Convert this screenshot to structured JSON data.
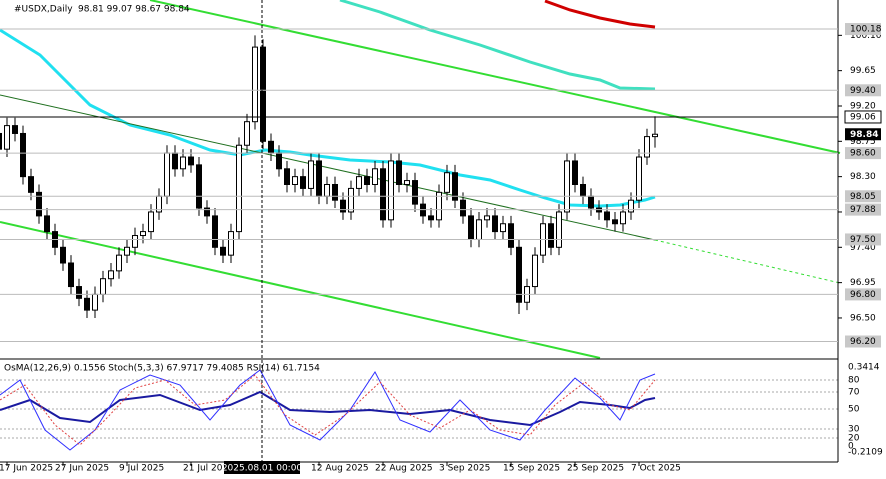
{
  "chart_data": {
    "type": "candlestick",
    "title": "#USDX,Daily",
    "title_values": "98.81 99.07 98.67 98.84",
    "categories": [
      null,
      null,
      "17 Jun 2025",
      null,
      null,
      null,
      null,
      null,
      null,
      "27 Jun 2025",
      null,
      null,
      null,
      null,
      null,
      null,
      null,
      "9 Jul 2025",
      null,
      null,
      null,
      null,
      null,
      null,
      null,
      "21 Jul 2025",
      null,
      null,
      null,
      null,
      null,
      null,
      null,
      null,
      null,
      null,
      null,
      null,
      null,
      null,
      null,
      "12 Aug 2025",
      null,
      null,
      null,
      null,
      null,
      null,
      null,
      "22 Aug 2025",
      null,
      null,
      null,
      null,
      null,
      null,
      null,
      "3 Sep 2025",
      null,
      null,
      null,
      null,
      null,
      null,
      null,
      "15 Sep 2025",
      null,
      null,
      null,
      null,
      null,
      null,
      null,
      "25 Sep 2025",
      null,
      null,
      null,
      null,
      null,
      null,
      null,
      "7 Oct 2025",
      null,
      null
    ],
    "open": [
      98.7,
      98.85,
      98.65,
      98.95,
      98.85,
      98.3,
      98.1,
      97.8,
      97.6,
      97.4,
      97.2,
      96.9,
      96.75,
      96.6,
      96.8,
      97.0,
      97.1,
      97.3,
      97.4,
      97.55,
      97.6,
      97.85,
      98.05,
      98.6,
      98.4,
      98.55,
      98.45,
      97.9,
      97.8,
      97.4,
      97.3,
      97.6,
      98.7,
      99.0,
      99.95,
      98.75,
      98.6,
      98.4,
      98.2,
      98.3,
      98.15,
      98.5,
      98.05,
      98.2,
      98.0,
      97.85,
      98.15,
      98.3,
      98.2,
      98.4,
      97.75,
      98.5,
      98.2,
      98.25,
      97.95,
      97.8,
      97.75,
      98.1,
      98.35,
      98.0,
      97.8,
      97.5,
      97.75,
      97.8,
      97.6,
      97.7,
      97.4,
      96.7,
      96.9,
      97.3,
      97.7,
      97.4,
      97.85,
      98.5,
      98.2,
      98.05,
      97.9,
      97.85,
      97.75,
      97.7,
      97.85,
      98.0,
      98.55,
      98.81
    ],
    "high": [
      98.95,
      98.95,
      99.05,
      99.05,
      98.95,
      98.4,
      98.2,
      97.9,
      97.7,
      97.5,
      97.3,
      97.0,
      96.85,
      96.9,
      97.1,
      97.2,
      97.4,
      97.5,
      97.65,
      97.7,
      97.95,
      98.15,
      98.7,
      98.7,
      98.65,
      98.65,
      98.55,
      98.0,
      97.9,
      97.5,
      97.7,
      98.8,
      99.1,
      100.1,
      100.05,
      98.85,
      98.7,
      98.5,
      98.4,
      98.4,
      98.6,
      98.6,
      98.3,
      98.3,
      98.1,
      98.25,
      98.4,
      98.4,
      98.5,
      98.5,
      98.6,
      98.6,
      98.35,
      98.35,
      98.05,
      97.9,
      98.2,
      98.45,
      98.45,
      98.1,
      97.9,
      97.85,
      97.9,
      97.9,
      97.8,
      97.8,
      97.5,
      97.0,
      97.4,
      97.8,
      97.8,
      97.95,
      98.6,
      98.6,
      98.3,
      98.15,
      98.0,
      97.95,
      97.85,
      97.95,
      98.1,
      98.65,
      98.91,
      99.07
    ],
    "low": [
      98.6,
      98.55,
      98.55,
      98.75,
      98.2,
      98.0,
      97.7,
      97.5,
      97.3,
      97.1,
      96.8,
      96.65,
      96.5,
      96.5,
      96.7,
      96.9,
      97.0,
      97.2,
      97.3,
      97.45,
      97.5,
      97.75,
      97.95,
      98.3,
      98.3,
      98.35,
      97.8,
      97.7,
      97.3,
      97.2,
      97.2,
      97.5,
      98.6,
      98.9,
      98.65,
      98.5,
      98.3,
      98.1,
      98.1,
      98.05,
      98.05,
      97.95,
      97.95,
      97.9,
      97.75,
      97.75,
      98.05,
      98.1,
      98.1,
      97.65,
      97.65,
      98.1,
      98.1,
      97.85,
      97.7,
      97.65,
      97.65,
      98.0,
      97.9,
      97.7,
      97.4,
      97.4,
      97.65,
      97.5,
      97.5,
      97.3,
      96.55,
      96.6,
      96.8,
      97.2,
      97.3,
      97.3,
      97.75,
      98.1,
      97.95,
      97.8,
      97.75,
      97.65,
      97.6,
      97.6,
      97.75,
      97.9,
      98.45,
      98.67
    ],
    "close": [
      98.85,
      98.65,
      98.95,
      98.85,
      98.3,
      98.1,
      97.8,
      97.6,
      97.4,
      97.2,
      96.9,
      96.75,
      96.6,
      96.8,
      97.0,
      97.1,
      97.3,
      97.4,
      97.55,
      97.6,
      97.85,
      98.05,
      98.6,
      98.4,
      98.55,
      98.45,
      97.9,
      97.8,
      97.4,
      97.3,
      97.6,
      98.7,
      99.0,
      99.95,
      98.75,
      98.6,
      98.4,
      98.2,
      98.3,
      98.15,
      98.5,
      98.05,
      98.2,
      98.0,
      97.85,
      98.15,
      98.3,
      98.2,
      98.4,
      97.75,
      98.5,
      98.2,
      98.25,
      97.95,
      97.8,
      97.75,
      98.1,
      98.35,
      98.0,
      97.8,
      97.5,
      97.75,
      97.8,
      97.6,
      97.7,
      97.4,
      96.7,
      96.9,
      97.3,
      97.7,
      97.4,
      97.85,
      98.5,
      98.2,
      98.05,
      97.9,
      97.85,
      97.75,
      97.7,
      97.85,
      98.0,
      98.55,
      98.81,
      98.84
    ],
    "ylim": [
      95.99,
      100.55
    ],
    "yticks": [
      {
        "value": 100.1,
        "label": "100.10"
      },
      99.65,
      {
        "value": 99.2,
        "label": "99.20"
      },
      98.75,
      {
        "value": 98.3,
        "label": "98.30"
      },
      97.85,
      {
        "value": 97.4,
        "label": "97.40"
      },
      96.95,
      {
        "value": 96.5,
        "label": "96.50"
      }
    ],
    "levels": [
      100.18,
      {
        "value": 99.4,
        "label": "99.40"
      },
      99.06,
      98.84,
      {
        "value": 98.6,
        "label": "98.60"
      },
      98.05,
      97.88,
      {
        "value": 97.5,
        "label": "97.50"
      },
      {
        "value": 96.8,
        "label": "96.80"
      },
      {
        "value": 96.2,
        "label": "96.20"
      }
    ],
    "crosshair_label": "2025.08.01 00:00",
    "indicator_label": "OsMA(12,26,9) 0.1556 Stoch(5,3,3) 67.9717 79.4085 RSI(14) 61.7154",
    "indicator_ticks": [
      0.3414,
      80,
      70,
      50,
      30,
      20,
      0,
      -0.2109
    ]
  }
}
